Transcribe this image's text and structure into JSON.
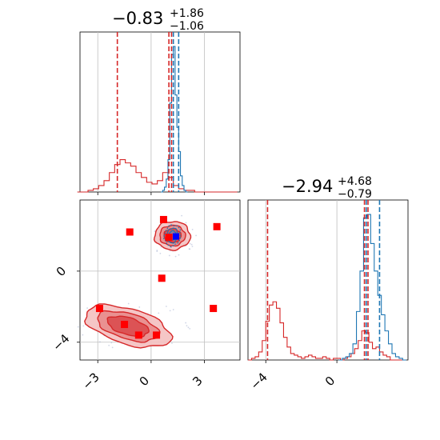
{
  "colors": {
    "blue": "#1f77b4",
    "red": "#d62728",
    "grid": "#bfbfbf",
    "marker": "#ff0000",
    "truth": "#0000ff"
  },
  "chart_data": [
    {
      "type": "histogram",
      "panel": "top-left",
      "title": {
        "main": "−0.83",
        "sup": "+1.86",
        "sub": "−1.06"
      },
      "xlim": [
        -4,
        5
      ],
      "series": [
        {
          "name": "",
          "color": "#d62728",
          "bin_centers": [
            -4.0,
            -3.7,
            -3.4,
            -3.1,
            -2.8,
            -2.5,
            -2.2,
            -1.9,
            -1.6,
            -1.3,
            -1.0,
            -0.7,
            -0.4,
            -0.1,
            0.2,
            0.5,
            0.8,
            1.1,
            1.4,
            1.7,
            2.0,
            2.3,
            2.6,
            2.9,
            3.2,
            3.5,
            3.8,
            4.1,
            4.4,
            4.7
          ],
          "heights": [
            0.0,
            0.0,
            0.01,
            0.02,
            0.04,
            0.07,
            0.12,
            0.17,
            0.2,
            0.18,
            0.16,
            0.12,
            0.09,
            0.06,
            0.05,
            0.07,
            0.12,
            0.09,
            0.04,
            0.02,
            0.01,
            0.01,
            0.0,
            0.0,
            0.0,
            0.0,
            0.0,
            0.0,
            0.0,
            0.0
          ]
        },
        {
          "name": "",
          "color": "#1f77b4",
          "bin_centers": [
            0.6,
            0.7,
            0.8,
            0.9,
            1.0,
            1.1,
            1.2,
            1.3,
            1.4,
            1.5,
            1.6,
            1.7,
            1.8,
            1.9,
            2.0
          ],
          "heights": [
            0.0,
            0.01,
            0.03,
            0.08,
            0.2,
            0.55,
            0.85,
            0.9,
            0.6,
            0.4,
            0.25,
            0.1,
            0.04,
            0.01,
            0.0
          ]
        }
      ],
      "vlines": [
        {
          "x": -1.9,
          "color": "#d62728"
        },
        {
          "x": 1.0,
          "color": "#d62728"
        },
        {
          "x": 1.15,
          "color": "#d62728"
        },
        {
          "x": 1.25,
          "color": "#1f77b4"
        },
        {
          "x": 1.55,
          "color": "#1f77b4"
        }
      ],
      "grid": true
    },
    {
      "type": "histogram",
      "panel": "bottom-right",
      "title": {
        "main": "−2.94",
        "sup": "+4.68",
        "sub": "−0.79"
      },
      "xlim": [
        -5,
        4
      ],
      "xticks": [
        -4,
        0
      ],
      "xticklabels": [
        "−4",
        "0"
      ],
      "series": [
        {
          "name": "",
          "color": "#d62728",
          "bin_centers": [
            -4.9,
            -4.7,
            -4.5,
            -4.3,
            -4.1,
            -3.9,
            -3.7,
            -3.5,
            -3.3,
            -3.1,
            -2.9,
            -2.7,
            -2.5,
            -2.3,
            -2.1,
            -1.9,
            -1.7,
            -1.5,
            -1.3,
            -1.1,
            -0.9,
            -0.7,
            -0.5,
            -0.3,
            -0.1,
            0.1,
            0.3,
            0.5,
            0.7,
            0.9,
            1.1,
            1.3,
            1.5,
            1.7,
            1.9,
            2.1,
            2.3,
            2.5,
            2.7,
            2.9,
            3.1,
            3.3,
            3.5,
            3.7
          ],
          "heights": [
            0.0,
            0.01,
            0.02,
            0.05,
            0.12,
            0.24,
            0.34,
            0.36,
            0.32,
            0.23,
            0.14,
            0.08,
            0.04,
            0.03,
            0.02,
            0.01,
            0.02,
            0.03,
            0.02,
            0.01,
            0.01,
            0.02,
            0.01,
            0.0,
            0.01,
            0.01,
            0.0,
            0.01,
            0.02,
            0.04,
            0.07,
            0.12,
            0.18,
            0.17,
            0.11,
            0.07,
            0.08,
            0.05,
            0.03,
            0.02,
            0.0,
            0.0,
            0.0,
            0.0
          ]
        },
        {
          "name": "",
          "color": "#1f77b4",
          "bin_centers": [
            0.2,
            0.4,
            0.6,
            0.8,
            1.0,
            1.2,
            1.4,
            1.6,
            1.8,
            2.0,
            2.2,
            2.4,
            2.6,
            2.8,
            3.0,
            3.2,
            3.4,
            3.6,
            3.8
          ],
          "heights": [
            0.0,
            0.01,
            0.02,
            0.04,
            0.1,
            0.3,
            0.55,
            0.88,
            0.9,
            0.72,
            0.55,
            0.4,
            0.28,
            0.18,
            0.1,
            0.04,
            0.02,
            0.01,
            0.0
          ]
        }
      ],
      "vlines": [
        {
          "x": -3.9,
          "color": "#d62728"
        },
        {
          "x": 1.55,
          "color": "#d62728"
        },
        {
          "x": 1.75,
          "color": "#d62728"
        },
        {
          "x": 1.65,
          "color": "#1f77b4"
        },
        {
          "x": 2.4,
          "color": "#1f77b4"
        }
      ],
      "grid": true
    },
    {
      "type": "scatter",
      "panel": "bottom-left",
      "xlim": [
        -4,
        5
      ],
      "ylim": [
        -5,
        4
      ],
      "xticks": [
        -3,
        0,
        3
      ],
      "xticklabels": [
        "−3",
        "0",
        "3"
      ],
      "yticks": [
        0,
        -4
      ],
      "yticklabels": [
        "0",
        "−4"
      ],
      "contour_regions": [
        {
          "name": "",
          "color": "#d62728",
          "center": [
            1.2,
            2.0
          ],
          "rx": 1.0,
          "ry": 0.8
        },
        {
          "name": "",
          "color": "#d62728",
          "center": [
            -1.3,
            -3.1
          ],
          "rx": 2.5,
          "ry": 1.0
        }
      ],
      "blue_region": {
        "color": "#1f77b4",
        "center": [
          1.2,
          2.0
        ],
        "rx": 0.45,
        "ry": 0.6
      },
      "markers": [
        {
          "x": -1.2,
          "y": 2.2
        },
        {
          "x": 0.7,
          "y": 2.9
        },
        {
          "x": 3.7,
          "y": 2.5
        },
        {
          "x": 1.0,
          "y": 1.9
        },
        {
          "x": 0.6,
          "y": -0.4
        },
        {
          "x": -2.9,
          "y": -2.1
        },
        {
          "x": 3.5,
          "y": -2.1
        },
        {
          "x": -1.5,
          "y": -3.0
        },
        {
          "x": -0.7,
          "y": -3.6
        },
        {
          "x": 0.3,
          "y": -3.6
        }
      ],
      "truth": {
        "x": 1.4,
        "y": 1.95
      },
      "grid": true
    }
  ]
}
